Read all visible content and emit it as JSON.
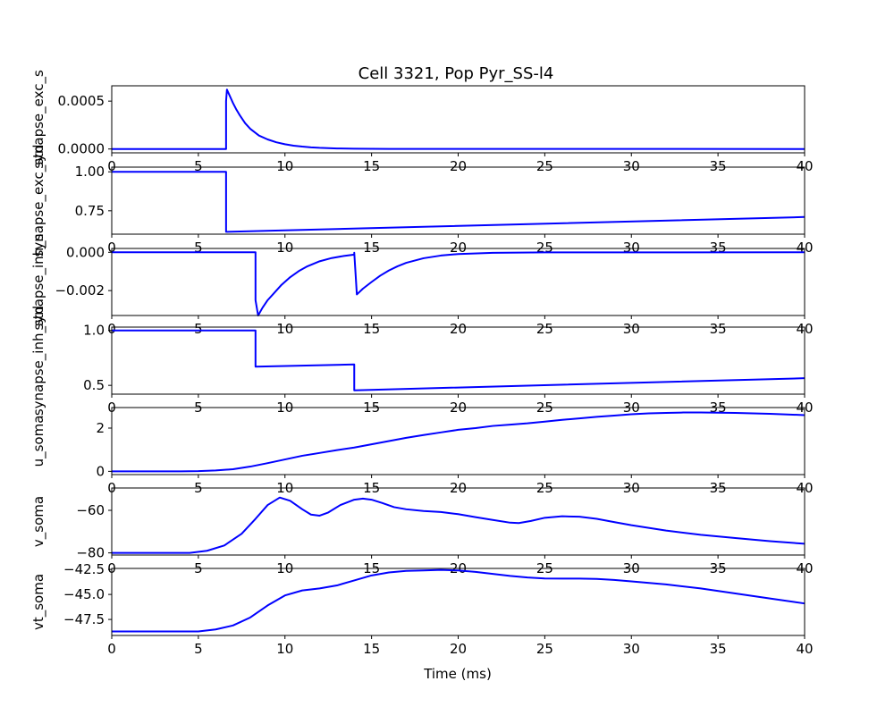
{
  "title": "Cell 3321, Pop Pyr_SS-l4",
  "xlabel": "Time (ms)",
  "colors": {
    "line": "#0000ff",
    "axes": "#000000",
    "background": "#ffffff"
  },
  "chart_data": [
    {
      "type": "line",
      "ylabel": "synapse_exc_s",
      "xlim": [
        0,
        40
      ],
      "ylim": [
        -4e-05,
        0.00066
      ],
      "xticks": [
        0,
        5,
        10,
        15,
        20,
        25,
        30,
        35,
        40
      ],
      "yticks": [
        0,
        0.0005
      ],
      "ytick_labels": [
        "0.0000",
        "0.0005"
      ],
      "series": [
        {
          "x": [
            0,
            6.6,
            6.6,
            6.65,
            6.7,
            6.8,
            6.9,
            7.0,
            7.2,
            7.4,
            7.7,
            8.0,
            8.5,
            9.0,
            9.5,
            10.0,
            10.5,
            11.0,
            11.5,
            12.0,
            13.0,
            14.0,
            16.0,
            40
          ],
          "y": [
            0,
            0,
            0.0005,
            0.00062,
            0.0006,
            0.00056,
            0.00052,
            0.00048,
            0.00041,
            0.00035,
            0.00027,
            0.00021,
            0.00014,
            0.0001,
            7e-05,
            5e-05,
            3.5e-05,
            2.5e-05,
            1.7e-05,
            1.2e-05,
            6e-06,
            3e-06,
            1e-06,
            0
          ]
        }
      ]
    },
    {
      "type": "line",
      "ylabel": "synapse_exc_std",
      "xlim": [
        0,
        40
      ],
      "ylim": [
        0.6,
        1.03
      ],
      "xticks": [
        0,
        5,
        10,
        15,
        20,
        25,
        30,
        35,
        40
      ],
      "yticks": [
        0.75,
        1.0
      ],
      "ytick_labels": [
        "0.75",
        "1.00"
      ],
      "series": [
        {
          "x": [
            0,
            6.6,
            6.6,
            40
          ],
          "y": [
            1.0,
            1.0,
            0.615,
            0.71
          ]
        }
      ]
    },
    {
      "type": "line",
      "ylabel": "synapse_inh_s",
      "xlim": [
        0,
        40
      ],
      "ylim": [
        -0.0033,
        0.0002
      ],
      "xticks": [
        0,
        5,
        10,
        15,
        20,
        25,
        30,
        35,
        40
      ],
      "yticks": [
        -0.002,
        0.0
      ],
      "ytick_labels": [
        "−0.002",
        "0.000"
      ],
      "series": [
        {
          "x": [
            0,
            8.3,
            8.3,
            8.45,
            8.7,
            9.0,
            9.4,
            9.8,
            10.3,
            10.8,
            11.3,
            12.0,
            12.7,
            13.4,
            14.0,
            14.0,
            14.15,
            14.5,
            15.0,
            15.5,
            16.0,
            16.5,
            17.0,
            18.0,
            19.0,
            20.0,
            22.0,
            25.0,
            40
          ],
          "y": [
            0,
            0,
            -0.0025,
            -0.0033,
            -0.0029,
            -0.0025,
            -0.0021,
            -0.0017,
            -0.0013,
            -0.00098,
            -0.00073,
            -0.00047,
            -0.0003,
            -0.00019,
            -0.00012,
            -2e-05,
            -0.0022,
            -0.0019,
            -0.00155,
            -0.00122,
            -0.00095,
            -0.00073,
            -0.00055,
            -0.00031,
            -0.00017,
            -9e-05,
            -3e-05,
            -5e-06,
            0
          ]
        }
      ]
    },
    {
      "type": "line",
      "ylabel": "synapse_inh_std",
      "xlim": [
        0,
        40
      ],
      "ylim": [
        0.42,
        1.03
      ],
      "xticks": [
        0,
        5,
        10,
        15,
        20,
        25,
        30,
        35,
        40
      ],
      "yticks": [
        0.5,
        1.0
      ],
      "ytick_labels": [
        "0.5",
        "1.0"
      ],
      "series": [
        {
          "x": [
            0,
            8.3,
            8.3,
            14.0,
            14.0,
            40
          ],
          "y": [
            1.0,
            1.0,
            0.67,
            0.69,
            0.455,
            0.565
          ]
        }
      ]
    },
    {
      "type": "line",
      "ylabel": "u_soma",
      "xlim": [
        0,
        40
      ],
      "ylim": [
        -0.15,
        2.95
      ],
      "xticks": [
        0,
        5,
        10,
        15,
        20,
        25,
        30,
        35,
        40
      ],
      "yticks": [
        0,
        2
      ],
      "ytick_labels": [
        "0",
        "2"
      ],
      "series": [
        {
          "x": [
            0,
            4,
            5,
            6,
            7,
            8,
            9,
            10,
            11,
            12,
            13,
            14,
            15,
            16,
            17,
            18,
            19,
            20,
            21,
            22,
            23,
            24,
            25,
            26,
            27,
            28,
            29,
            30,
            31,
            32,
            33,
            34,
            35,
            36,
            37,
            38,
            39,
            40
          ],
          "y": [
            0,
            0,
            0.01,
            0.04,
            0.1,
            0.22,
            0.38,
            0.55,
            0.72,
            0.85,
            0.98,
            1.1,
            1.25,
            1.4,
            1.55,
            1.68,
            1.8,
            1.92,
            2.0,
            2.1,
            2.16,
            2.22,
            2.3,
            2.38,
            2.45,
            2.52,
            2.58,
            2.64,
            2.68,
            2.7,
            2.72,
            2.72,
            2.71,
            2.7,
            2.68,
            2.66,
            2.63,
            2.6
          ]
        }
      ]
    },
    {
      "type": "line",
      "ylabel": "v_soma",
      "xlim": [
        0,
        40
      ],
      "ylim": [
        -81,
        -49.5
      ],
      "xticks": [
        0,
        5,
        10,
        15,
        20,
        25,
        30,
        35,
        40
      ],
      "yticks": [
        -80,
        -60
      ],
      "ytick_labels": [
        "−80",
        "−60"
      ],
      "series": [
        {
          "x": [
            0,
            4.5,
            5.5,
            6.5,
            7.5,
            8.3,
            9.0,
            9.7,
            10.3,
            11.0,
            11.5,
            12.0,
            12.5,
            13.2,
            14.0,
            14.5,
            15.0,
            15.6,
            16.3,
            17.0,
            18.0,
            19.0,
            20.0,
            21.0,
            22.0,
            23.0,
            23.5,
            24.2,
            25.0,
            26.0,
            27.0,
            28.0,
            29.0,
            30.0,
            32.0,
            34.0,
            36.0,
            38.0,
            40.0
          ],
          "y": [
            -80,
            -80,
            -79,
            -76.5,
            -71,
            -64,
            -57.5,
            -54,
            -55.5,
            -59.5,
            -62,
            -62.5,
            -61,
            -57.5,
            -55,
            -54.5,
            -55,
            -56.5,
            -58.5,
            -59.5,
            -60.3,
            -60.8,
            -61.8,
            -63.2,
            -64.5,
            -65.8,
            -66,
            -65,
            -63.5,
            -62.8,
            -63,
            -64,
            -65.5,
            -67,
            -69.5,
            -71.5,
            -73,
            -74.5,
            -75.7
          ]
        }
      ]
    },
    {
      "type": "line",
      "ylabel": "vt_soma",
      "xlim": [
        0,
        40
      ],
      "ylim": [
        -49.1,
        -42.4
      ],
      "xticks": [
        0,
        5,
        10,
        15,
        20,
        25,
        30,
        35,
        40
      ],
      "yticks": [
        -47.5,
        -45.0,
        -42.5
      ],
      "ytick_labels": [
        "−47.5",
        "−45.0",
        "−42.5"
      ],
      "series": [
        {
          "x": [
            0,
            5,
            6,
            7,
            8,
            9,
            10,
            11,
            12,
            13,
            14,
            15,
            16,
            17,
            18,
            19,
            20,
            21,
            22,
            23,
            24,
            25,
            26,
            27,
            28,
            29,
            30,
            32,
            34,
            36,
            38,
            40
          ],
          "y": [
            -48.7,
            -48.7,
            -48.5,
            -48.1,
            -47.3,
            -46.1,
            -45.1,
            -44.6,
            -44.4,
            -44.1,
            -43.6,
            -43.1,
            -42.8,
            -42.65,
            -42.6,
            -42.55,
            -42.6,
            -42.75,
            -42.95,
            -43.15,
            -43.3,
            -43.4,
            -43.42,
            -43.42,
            -43.45,
            -43.55,
            -43.7,
            -44.0,
            -44.4,
            -44.9,
            -45.4,
            -45.9
          ]
        }
      ]
    }
  ]
}
